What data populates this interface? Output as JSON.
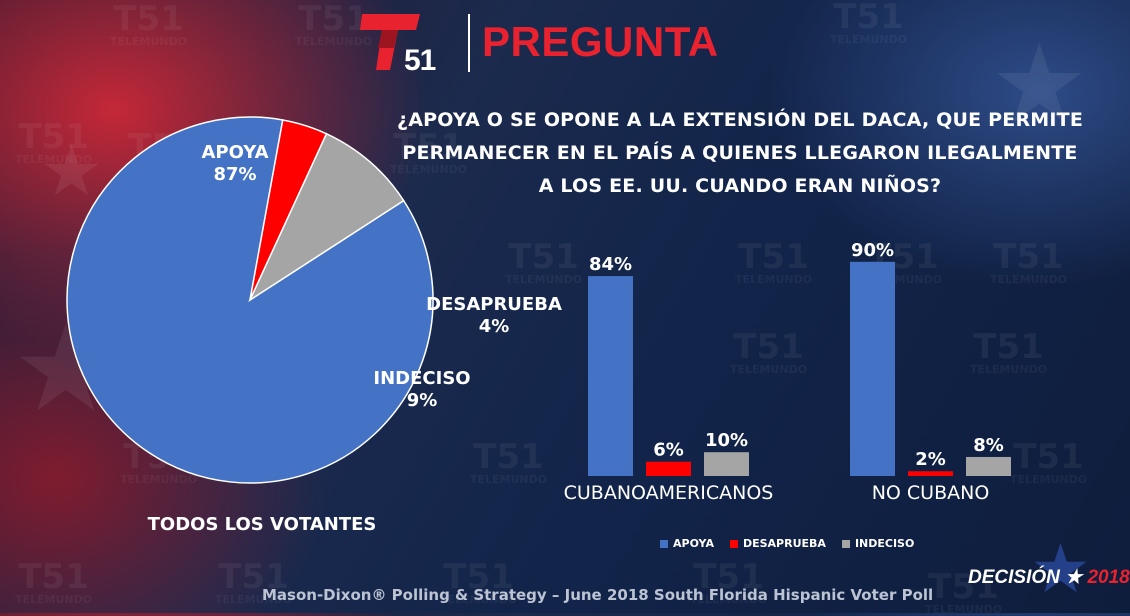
{
  "header": {
    "logo_number": "51",
    "title": "PREGUNTA"
  },
  "question": "¿APOYA O SE OPONE A LA EXTENSIÓN DEL DACA, QUE PERMITE PERMANECER EN EL PAÍS A QUIENES LLEGARON ILEGALMENTE A LOS EE. UU. CUANDO ERAN NIÑOS?",
  "watermark": {
    "number": "51",
    "word": "TELEMUNDO"
  },
  "colors": {
    "apoya": "#4472c4",
    "desaprueba": "#ff0000",
    "indeciso": "#a5a5a5",
    "brand_red": "#e8222f"
  },
  "chart_data": [
    {
      "type": "pie",
      "caption": "TODOS LOS VOTANTES",
      "slices": [
        {
          "label": "APOYA",
          "value": 87,
          "value_label": "87%",
          "color": "#4472c4"
        },
        {
          "label": "DESAPRUEBA",
          "value": 4,
          "value_label": "4%",
          "color": "#ff0000"
        },
        {
          "label": "INDECISO",
          "value": 9,
          "value_label": "9%",
          "color": "#a5a5a5"
        }
      ]
    },
    {
      "type": "bar",
      "categories": [
        "CUBANOAMERICANOS",
        "NO CUBANO"
      ],
      "series": [
        {
          "name": "APOYA",
          "color": "#4472c4",
          "values": [
            84,
            90
          ],
          "labels": [
            "84%",
            "90%"
          ]
        },
        {
          "name": "DESAPRUEBA",
          "color": "#ff0000",
          "values": [
            6,
            2
          ],
          "labels": [
            "6%",
            "2%"
          ]
        },
        {
          "name": "INDECISO",
          "color": "#a5a5a5",
          "values": [
            10,
            8
          ],
          "labels": [
            "10%",
            "8%"
          ]
        }
      ],
      "ylim": [
        0,
        100
      ],
      "legend_position": "bottom"
    }
  ],
  "footer": {
    "source": "Mason-Dixon® Polling & Strategy – June 2018 South Florida Hispanic Voter Poll",
    "decision_word": "DECISIÓN",
    "decision_star": "★",
    "decision_year": "2018"
  }
}
